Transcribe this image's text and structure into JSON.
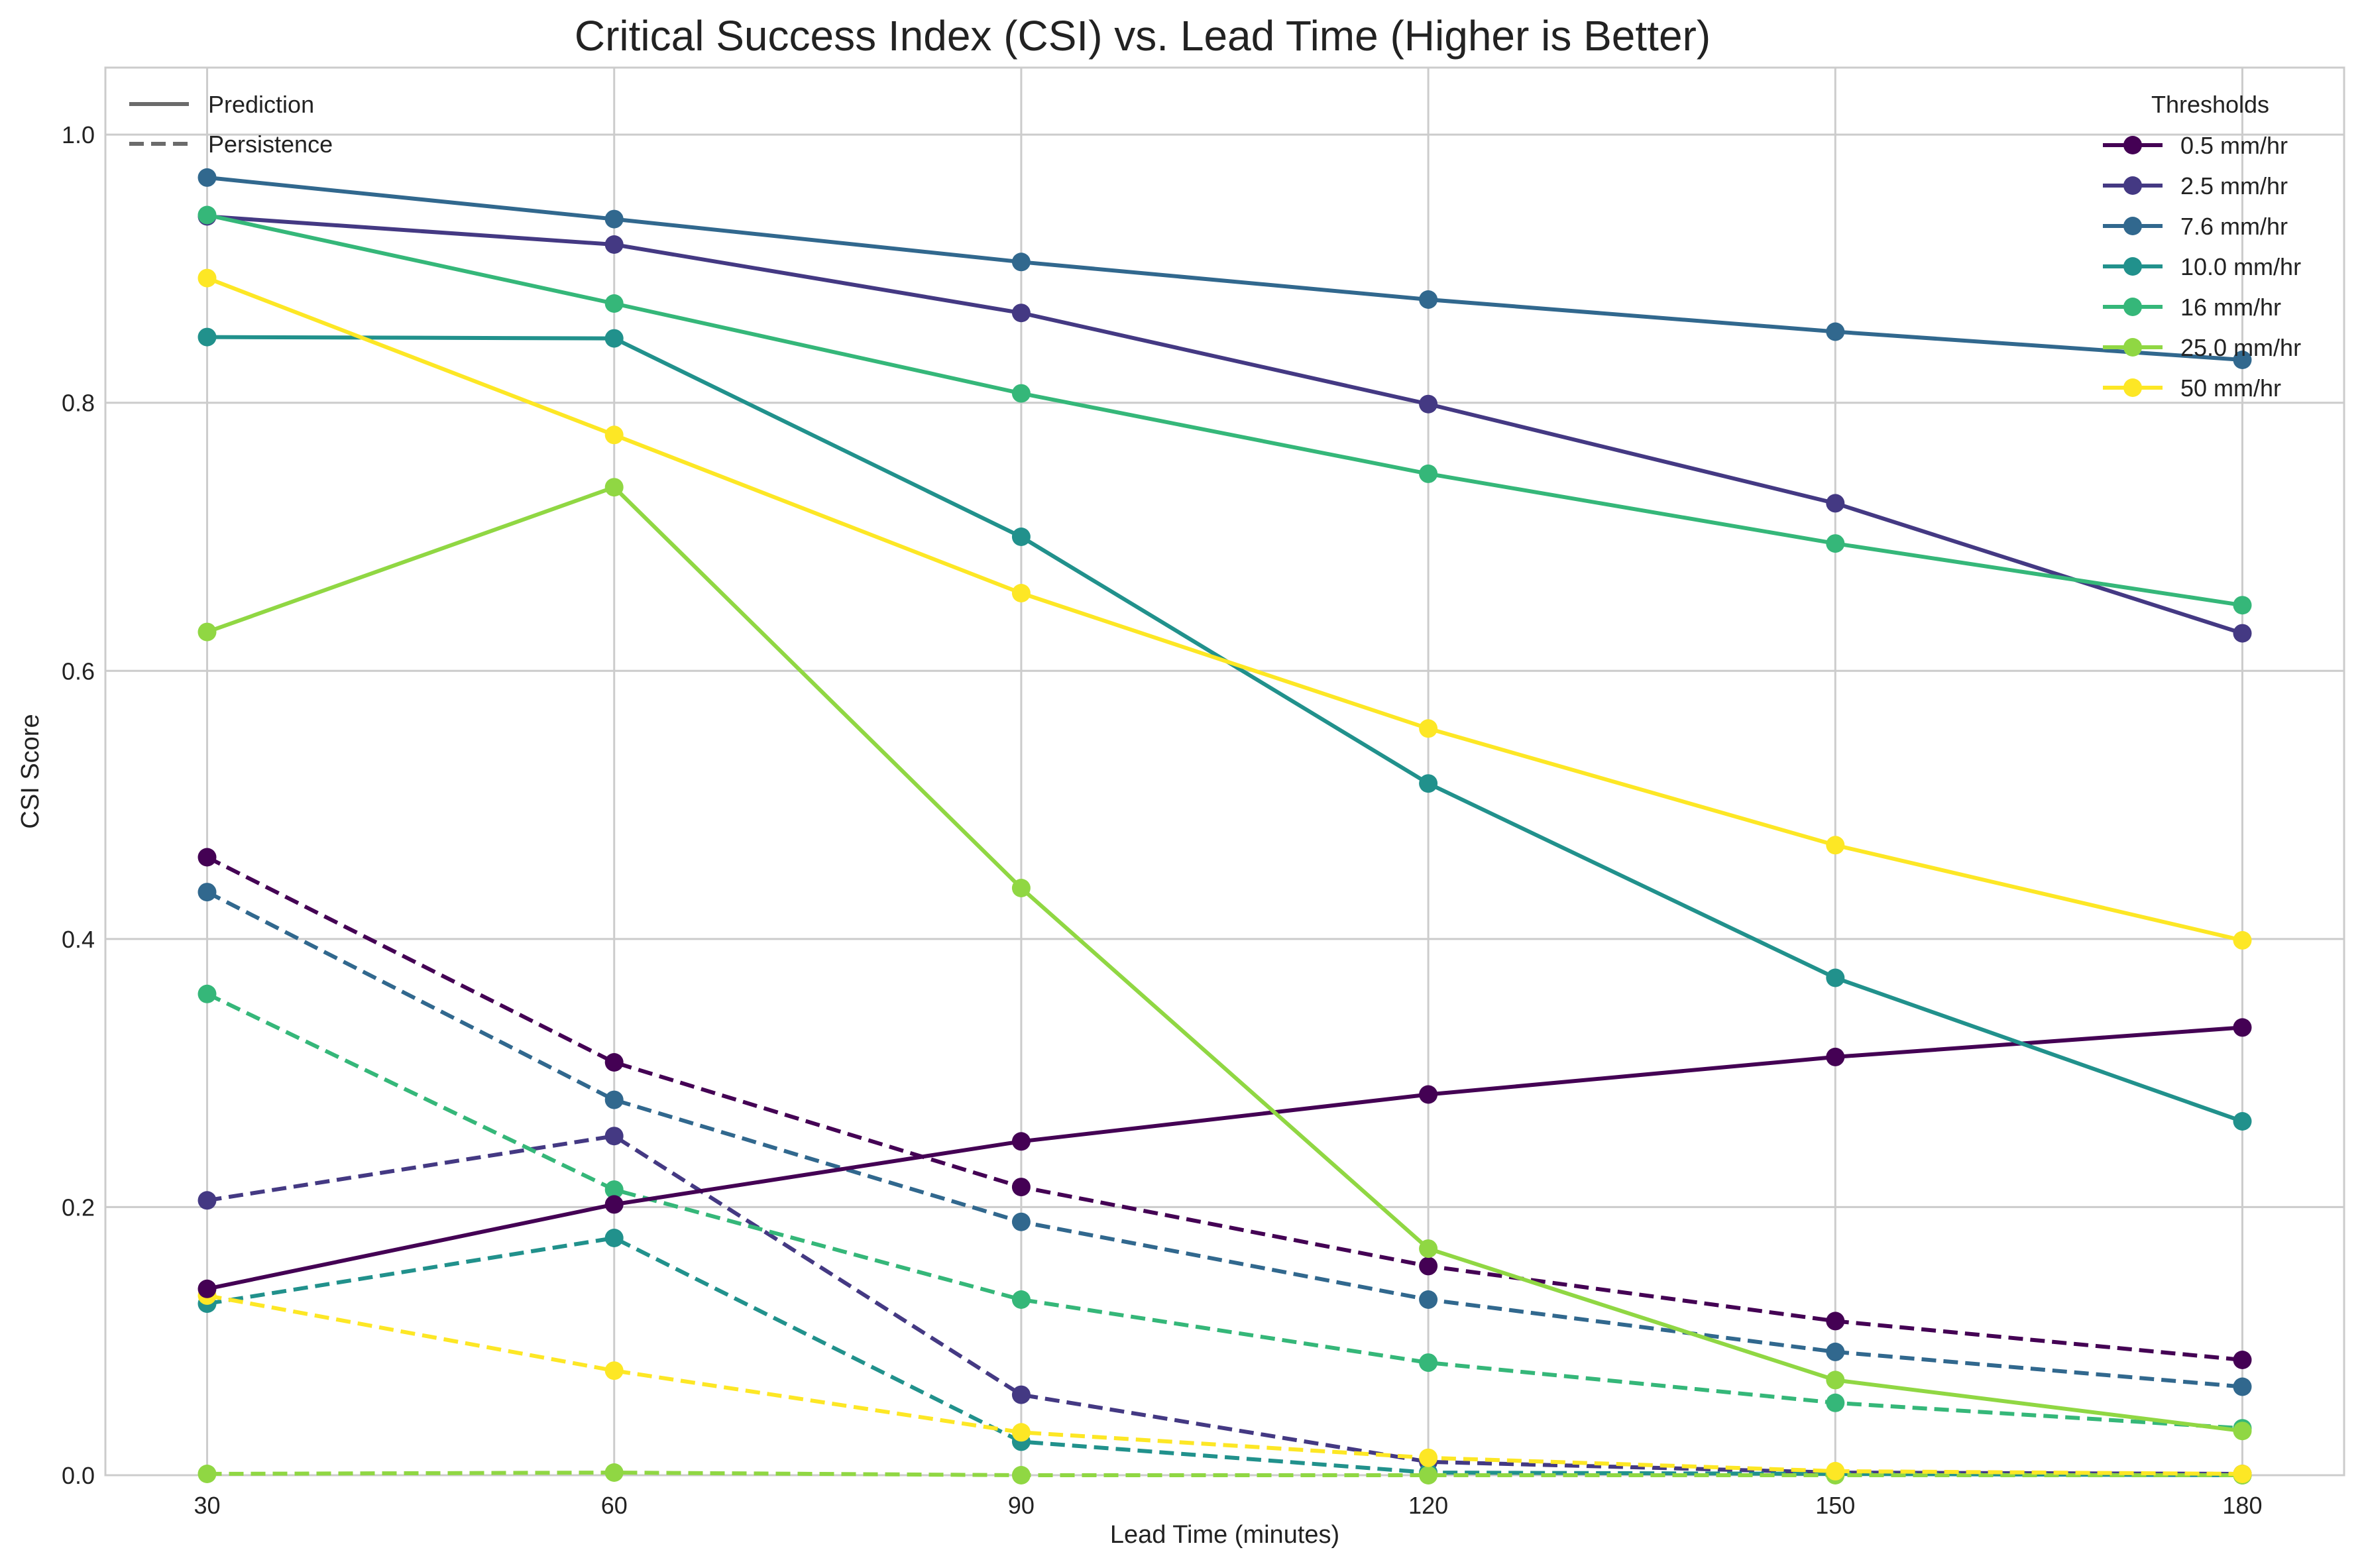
{
  "chart_data": {
    "type": "line",
    "title": "Critical Success Index (CSI) vs. Lead Time (Higher is Better)",
    "xlabel": "Lead Time (minutes)",
    "ylabel": "CSI Score",
    "x": [
      30,
      60,
      90,
      120,
      150,
      180
    ],
    "x_ticks": [
      "30",
      "60",
      "90",
      "120",
      "150",
      "180"
    ],
    "y_ticks": [
      "0.0",
      "0.2",
      "0.4",
      "0.6",
      "0.8",
      "1.0"
    ],
    "xlim": [
      22.5,
      187.5
    ],
    "ylim": [
      0,
      1.05
    ],
    "grid": true,
    "style_legend": {
      "placement": "top-left",
      "entries": [
        {
          "label": "Prediction",
          "linestyle": "solid"
        },
        {
          "label": "Persistence",
          "linestyle": "dashed"
        }
      ]
    },
    "threshold_legend": {
      "placement": "top-right",
      "title": "Thresholds"
    },
    "series": [
      {
        "name": "0.5 mm/hr",
        "color": "#440154",
        "prediction": [
          0.139,
          0.202,
          0.249,
          0.284,
          0.312,
          0.334
        ],
        "persistence": [
          0.461,
          0.308,
          0.215,
          0.156,
          0.115,
          0.086
        ]
      },
      {
        "name": "2.5 mm/hr",
        "color": "#443983",
        "prediction": [
          0.939,
          0.918,
          0.867,
          0.799,
          0.725,
          0.628
        ],
        "persistence": [
          0.205,
          0.253,
          0.06,
          0.01,
          0.002,
          0.001
        ]
      },
      {
        "name": "7.6 mm/hr",
        "color": "#31688e",
        "prediction": [
          0.968,
          0.937,
          0.905,
          0.877,
          0.853,
          0.832
        ],
        "persistence": [
          0.435,
          0.28,
          0.189,
          0.131,
          0.092,
          0.066
        ]
      },
      {
        "name": "10.0 mm/hr",
        "color": "#21918c",
        "prediction": [
          0.849,
          0.848,
          0.7,
          0.516,
          0.371,
          0.264
        ],
        "persistence": [
          0.128,
          0.177,
          0.025,
          0.002,
          0.001,
          0.0
        ]
      },
      {
        "name": "16 mm/hr",
        "color": "#35b779",
        "prediction": [
          0.94,
          0.874,
          0.807,
          0.747,
          0.695,
          0.649
        ],
        "persistence": [
          0.359,
          0.213,
          0.131,
          0.084,
          0.054,
          0.035
        ]
      },
      {
        "name": "25.0 mm/hr",
        "color": "#90d743",
        "prediction": [
          0.629,
          0.737,
          0.438,
          0.169,
          0.071,
          0.033
        ],
        "persistence": [
          0.001,
          0.002,
          0.0,
          0.0,
          0.0,
          0.0
        ]
      },
      {
        "name": "50 mm/hr",
        "color": "#fde725",
        "prediction": [
          0.893,
          0.776,
          0.658,
          0.557,
          0.47,
          0.399
        ],
        "persistence": [
          0.134,
          0.078,
          0.032,
          0.013,
          0.003,
          0.001
        ]
      }
    ]
  }
}
